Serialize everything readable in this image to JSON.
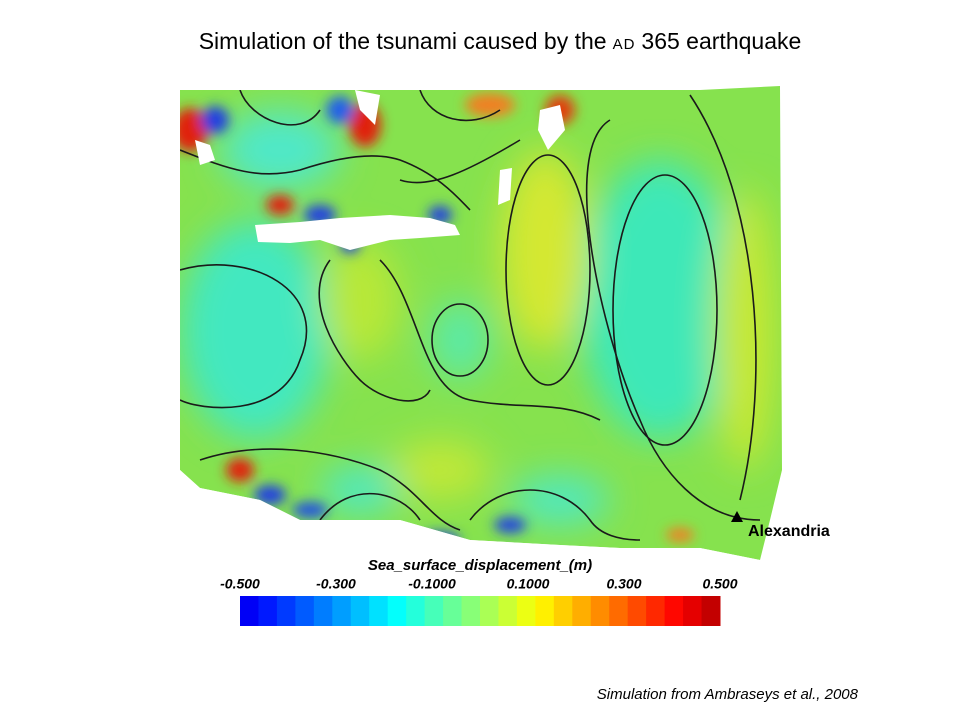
{
  "title": {
    "before": "Simulation of the tsunami caused by the",
    "small_caps": "AD",
    "after": "365 earthquake"
  },
  "map": {
    "place_label": "Alexandria"
  },
  "colorbar": {
    "title": "Sea_surface_displacement_(m)",
    "range": [
      -0.5,
      0.5
    ],
    "ticks": [
      {
        "value": -0.5,
        "label": "-0.500"
      },
      {
        "value": -0.3,
        "label": "-0.300"
      },
      {
        "value": -0.1,
        "label": "-0.1000"
      },
      {
        "value": 0.1,
        "label": "0.1000"
      },
      {
        "value": 0.3,
        "label": "0.300"
      },
      {
        "value": 0.5,
        "label": "0.500"
      }
    ]
  },
  "credit": "Simulation from Ambraseys et al., 2008"
}
